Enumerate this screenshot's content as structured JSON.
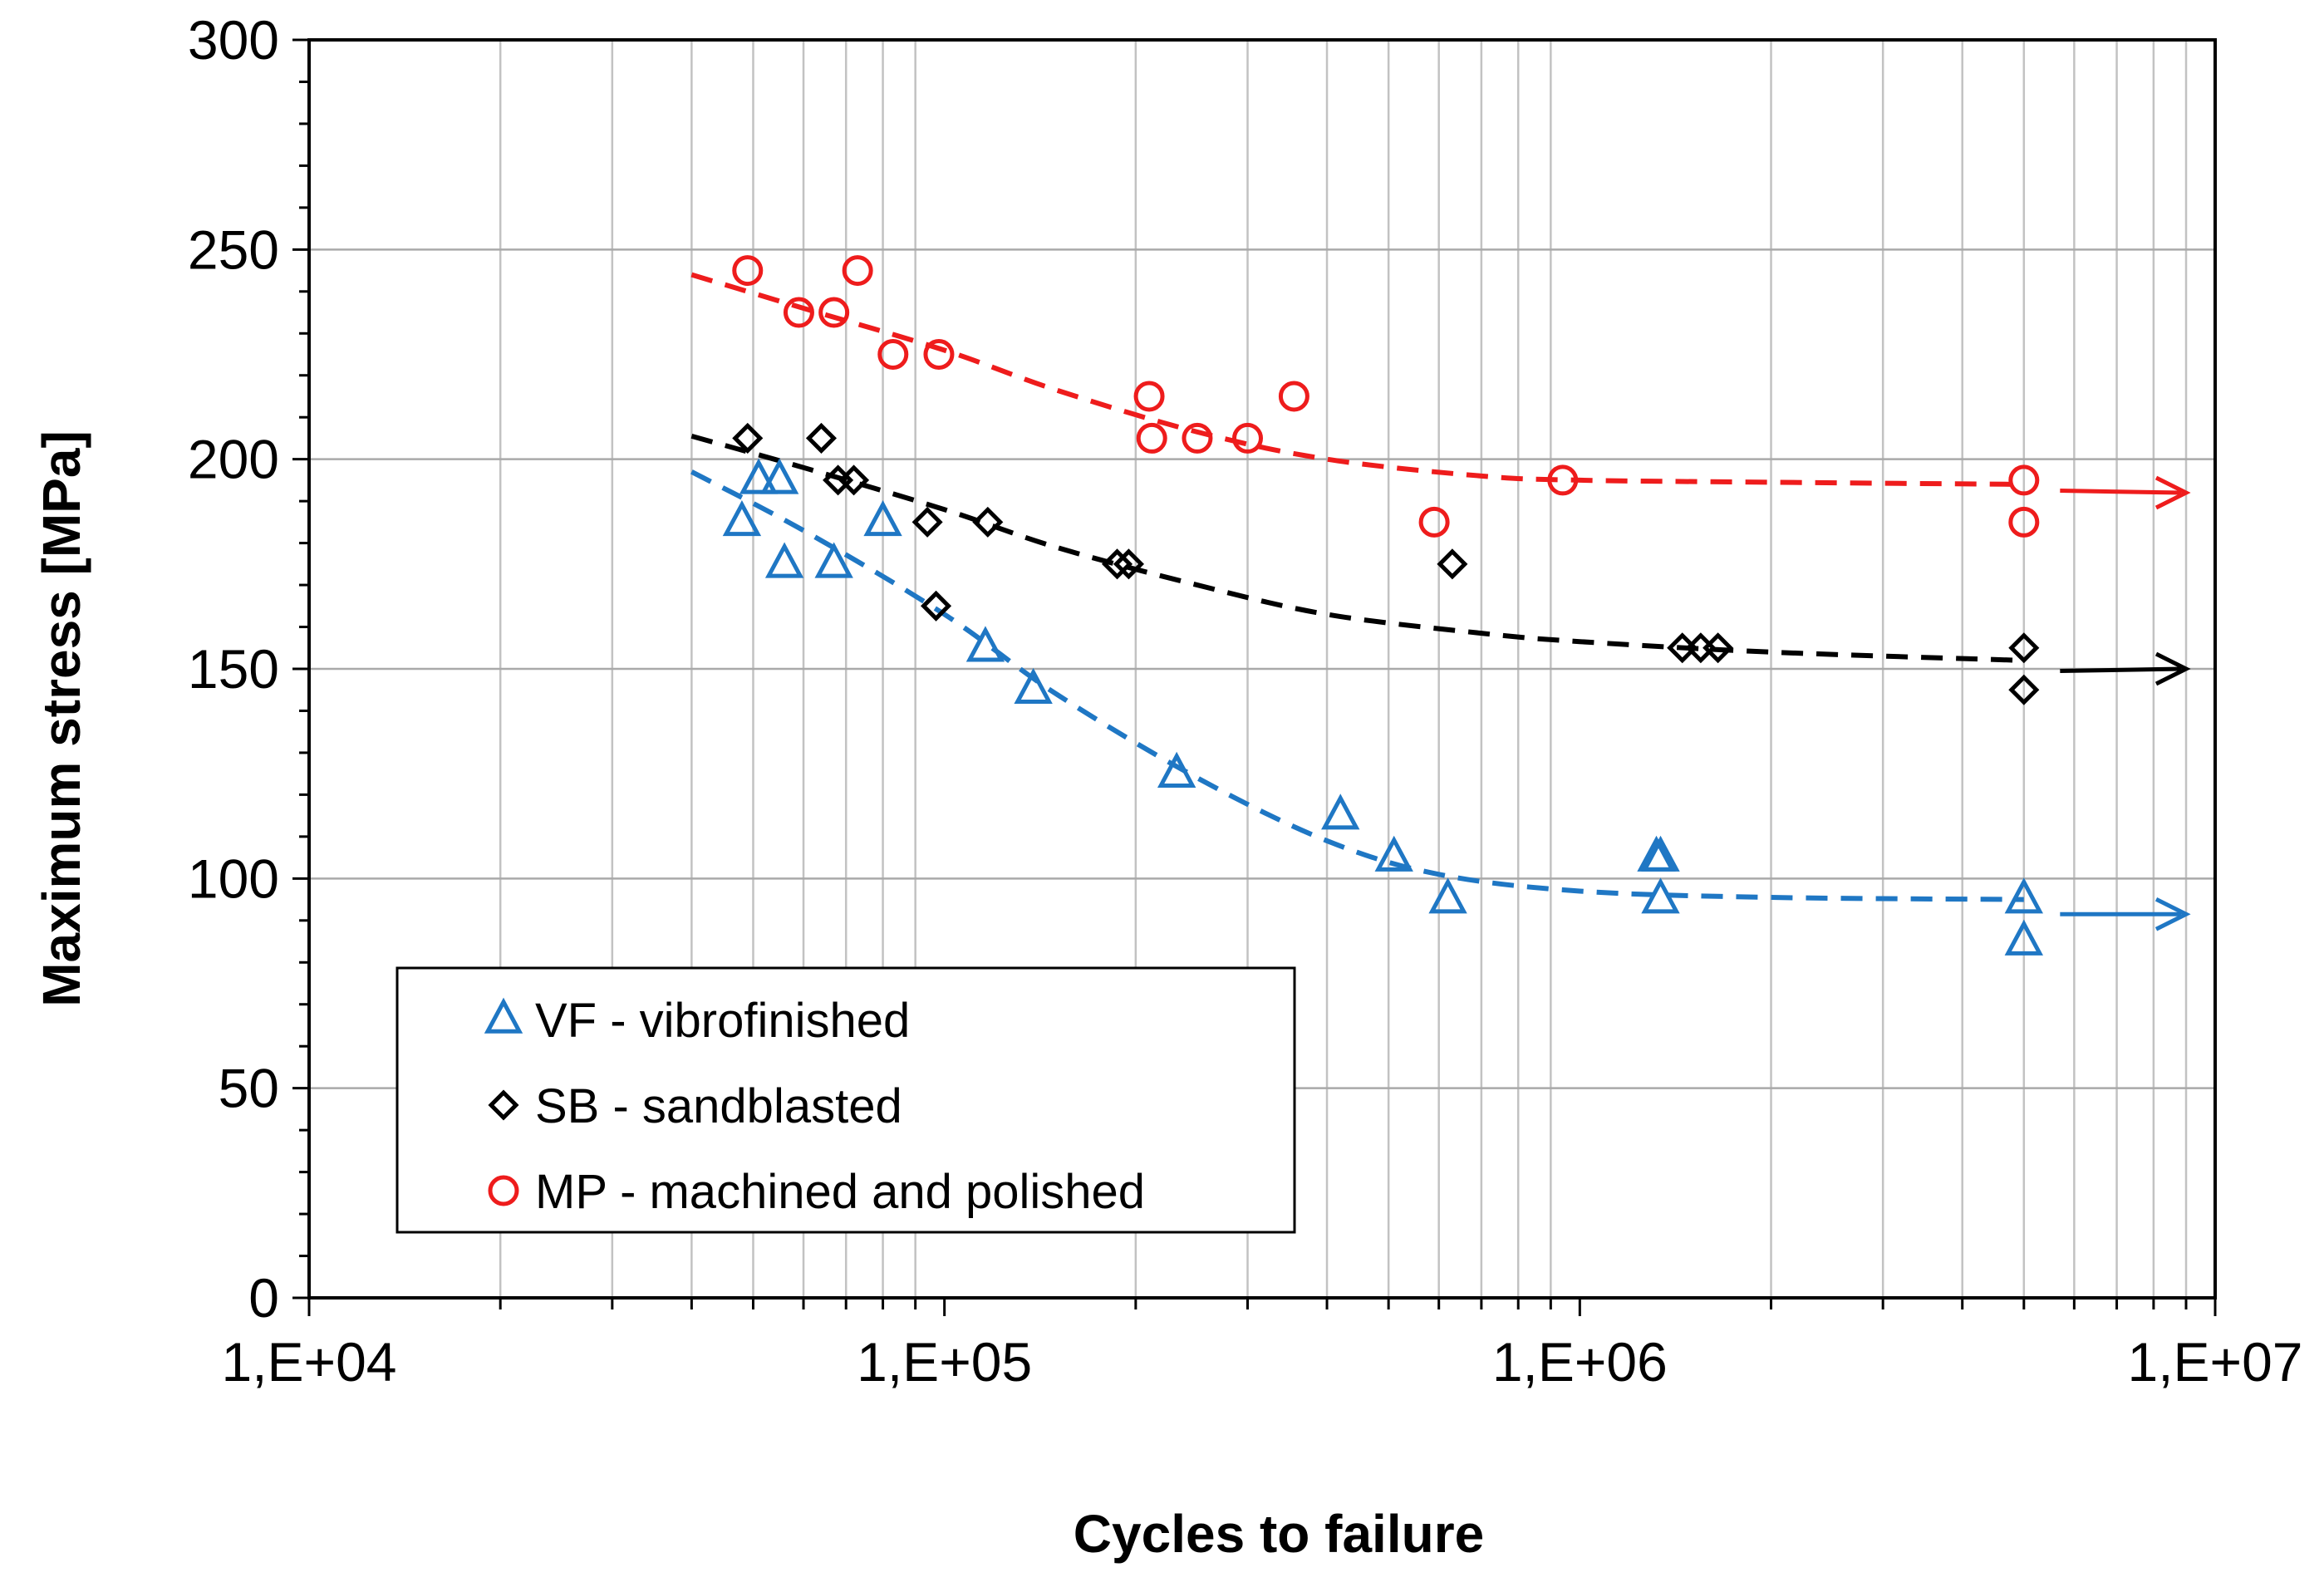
{
  "chart_data": {
    "type": "scatter",
    "title": "",
    "xlabel": "Cycles  to failure",
    "ylabel": "Maximum stress [MPa]",
    "xscale": "log",
    "xlim": [
      10000,
      10000000
    ],
    "ylim": [
      0,
      300
    ],
    "grid": true,
    "legend_position": "bottom-left",
    "x_ticks": [
      {
        "value": 10000,
        "label": "1,E+04"
      },
      {
        "value": 100000,
        "label": "1,E+05"
      },
      {
        "value": 1000000,
        "label": "1,E+06"
      },
      {
        "value": 10000000,
        "label": "1,E+07"
      }
    ],
    "y_ticks": [
      {
        "value": 0,
        "label": "0"
      },
      {
        "value": 50,
        "label": "50"
      },
      {
        "value": 100,
        "label": "100"
      },
      {
        "value": 150,
        "label": "150"
      },
      {
        "value": 200,
        "label": "200"
      },
      {
        "value": 250,
        "label": "250"
      },
      {
        "value": 300,
        "label": "300"
      }
    ],
    "series": [
      {
        "name": "VF - vibrofinished",
        "marker": "triangle",
        "color": "#1f77c4",
        "points": [
          [
            48000,
            185
          ],
          [
            51000,
            195
          ],
          [
            55000,
            195
          ],
          [
            56000,
            175
          ],
          [
            67000,
            175
          ],
          [
            80000,
            185
          ],
          [
            116000,
            155
          ],
          [
            138000,
            145
          ],
          [
            232000,
            125
          ],
          [
            420000,
            115
          ],
          [
            510000,
            105
          ],
          [
            620000,
            95
          ],
          [
            1320000,
            105
          ],
          [
            1340000,
            105
          ],
          [
            1340000,
            95
          ],
          [
            5000000,
            95
          ],
          [
            5000000,
            85
          ]
        ],
        "trend": [
          [
            40000,
            197
          ],
          [
            60000,
            183
          ],
          [
            100000,
            163
          ],
          [
            150000,
            144
          ],
          [
            250000,
            124
          ],
          [
            400000,
            109
          ],
          [
            600000,
            101
          ],
          [
            1000000,
            97
          ],
          [
            2000000,
            95.5
          ],
          [
            5000000,
            95
          ]
        ],
        "runout_arrow": {
          "from": [
            5700000,
            91.5
          ],
          "to": [
            9000000,
            91.5
          ]
        }
      },
      {
        "name": "SB - sandblasted",
        "marker": "diamond",
        "color": "#000000",
        "points": [
          [
            49000,
            205
          ],
          [
            64000,
            205
          ],
          [
            68000,
            195
          ],
          [
            72000,
            195
          ],
          [
            94000,
            185
          ],
          [
            97000,
            165
          ],
          [
            117000,
            185
          ],
          [
            187000,
            175
          ],
          [
            195000,
            175
          ],
          [
            630000,
            175
          ],
          [
            1450000,
            155
          ],
          [
            1550000,
            155
          ],
          [
            1650000,
            155
          ],
          [
            5000000,
            155
          ],
          [
            5000000,
            145
          ]
        ],
        "trend": [
          [
            40000,
            205.5
          ],
          [
            60000,
            198
          ],
          [
            100000,
            188
          ],
          [
            150000,
            179
          ],
          [
            250000,
            170
          ],
          [
            400000,
            163
          ],
          [
            700000,
            158.5
          ],
          [
            1000000,
            156.5
          ],
          [
            2000000,
            154
          ],
          [
            5000000,
            152
          ]
        ],
        "runout_arrow": {
          "from": [
            5700000,
            149.5
          ],
          "to": [
            9000000,
            150
          ]
        }
      },
      {
        "name": "MP - machined and polished",
        "marker": "circle",
        "color": "#ee1c1c",
        "points": [
          [
            49000,
            245
          ],
          [
            59000,
            235
          ],
          [
            67000,
            235
          ],
          [
            73000,
            245
          ],
          [
            83000,
            225
          ],
          [
            98000,
            225
          ],
          [
            210000,
            215
          ],
          [
            212000,
            205
          ],
          [
            250000,
            205
          ],
          [
            300000,
            205
          ],
          [
            355000,
            215
          ],
          [
            590000,
            185
          ],
          [
            940000,
            195
          ],
          [
            5000000,
            195
          ],
          [
            5000000,
            185
          ]
        ],
        "trend": [
          [
            40000,
            244
          ],
          [
            60000,
            236
          ],
          [
            100000,
            226
          ],
          [
            150000,
            216.5
          ],
          [
            250000,
            206.5
          ],
          [
            400000,
            200
          ],
          [
            700000,
            196
          ],
          [
            1000000,
            195
          ],
          [
            2000000,
            194.5
          ],
          [
            5000000,
            194
          ]
        ],
        "runout_arrow": {
          "from": [
            5700000,
            192.5
          ],
          "to": [
            9000000,
            192
          ]
        }
      }
    ]
  }
}
